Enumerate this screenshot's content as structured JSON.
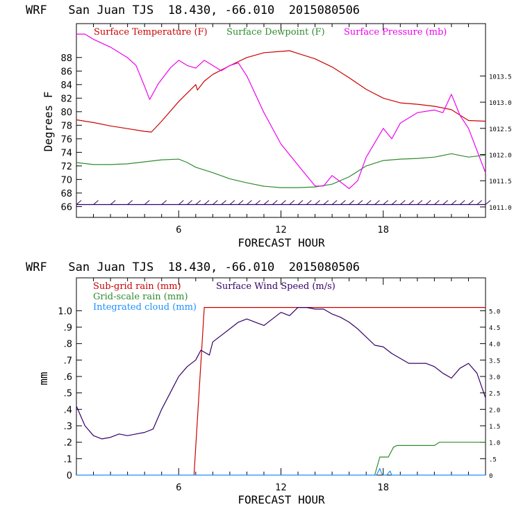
{
  "chart_data": [
    {
      "type": "line",
      "title": "WRF   San Juan TJS  18.430, -66.010  2015080506",
      "xlabel": "FORECAST HOUR",
      "ylabel": "Degrees F",
      "xlim": [
        0,
        24
      ],
      "ylim": [
        64.4,
        93
      ],
      "y2lim": [
        1010.8,
        1014.5
      ],
      "xticks": [
        6,
        12,
        18
      ],
      "yticks": [
        66,
        68,
        70,
        72,
        74,
        76,
        78,
        80,
        82,
        84,
        86,
        88
      ],
      "y2ticks": [
        1011.0,
        1011.5,
        1012.0,
        1012.5,
        1013.0,
        1013.5
      ],
      "y2ticklabels": [
        "1011.0",
        "1011.5",
        "1012.0",
        "1012.5",
        "1013.0",
        "1013.5"
      ],
      "series": [
        {
          "name": "Surface Temperature (F)",
          "color": "#cc0000",
          "axis": "left",
          "x": [
            0,
            1,
            2,
            3,
            4,
            4.4,
            5,
            6,
            7,
            7.1,
            7.5,
            8,
            9,
            10,
            11,
            12,
            12.5,
            13,
            14,
            15,
            16,
            17,
            18,
            19,
            20,
            21,
            22,
            23,
            24
          ],
          "y": [
            78.8,
            78.4,
            77.9,
            77.5,
            77.1,
            77.0,
            78.6,
            81.5,
            84.0,
            83.2,
            84.5,
            85.5,
            86.8,
            88.0,
            88.7,
            88.9,
            89.0,
            88.6,
            87.8,
            86.6,
            85.0,
            83.3,
            82.0,
            81.3,
            81.1,
            80.8,
            80.3,
            78.7,
            78.6
          ]
        },
        {
          "name": "Surface Dewpoint (F)",
          "color": "#2e8b2e",
          "axis": "left",
          "x": [
            0,
            1,
            2,
            3,
            4,
            5,
            6,
            6.5,
            7,
            8,
            9,
            10,
            11,
            12,
            13,
            14,
            15,
            16,
            17,
            18,
            19,
            20,
            21,
            22,
            23,
            24
          ],
          "y": [
            72.5,
            72.2,
            72.2,
            72.3,
            72.6,
            72.9,
            73.0,
            72.5,
            71.8,
            71.0,
            70.1,
            69.5,
            69.0,
            68.8,
            68.8,
            68.9,
            69.3,
            70.4,
            72.0,
            72.8,
            73.0,
            73.1,
            73.3,
            73.8,
            73.3,
            73.6
          ]
        },
        {
          "name": "Surface Pressure (mb)",
          "color": "#ee00ee",
          "axis": "right",
          "x": [
            0,
            0.5,
            1,
            2,
            3,
            3.5,
            4,
            4.3,
            4.8,
            5.5,
            6,
            6.5,
            7,
            7.5,
            8,
            8.5,
            9,
            9.5,
            10,
            11,
            12,
            13,
            14,
            14.5,
            15,
            16,
            16.5,
            17,
            18,
            18.5,
            19,
            20,
            21,
            21.5,
            22,
            22.5,
            23,
            24
          ],
          "y": [
            1014.3,
            1014.3,
            1014.2,
            1014.05,
            1013.85,
            1013.7,
            1013.3,
            1013.05,
            1013.35,
            1013.65,
            1013.8,
            1013.7,
            1013.65,
            1013.8,
            1013.7,
            1013.6,
            1013.7,
            1013.75,
            1013.5,
            1012.8,
            1012.2,
            1011.8,
            1011.4,
            1011.4,
            1011.6,
            1011.35,
            1011.5,
            1011.95,
            1012.5,
            1012.3,
            1012.6,
            1012.8,
            1012.85,
            1012.8,
            1013.15,
            1012.75,
            1012.5,
            1011.65
          ]
        }
      ],
      "wind_barbs": {
        "color": "#330066",
        "axis": "left",
        "baseline": 66.3,
        "x": [
          0,
          1,
          2,
          3,
          4,
          5,
          6,
          6.5,
          7,
          7.5,
          8,
          8.5,
          9,
          9.5,
          10,
          10.5,
          11,
          11.5,
          12,
          12.5,
          13,
          13.5,
          14,
          14.5,
          15,
          15.5,
          16,
          16.5,
          17,
          17.5,
          18,
          18.5,
          19,
          19.5,
          20,
          20.5,
          21,
          21.5,
          22,
          22.5,
          23,
          23.5,
          24
        ]
      }
    },
    {
      "type": "line",
      "title": "WRF   San Juan TJS  18.430, -66.010  2015080506",
      "xlabel": "FORECAST HOUR",
      "ylabel": "mm",
      "xlim": [
        0,
        24
      ],
      "ylim": [
        0,
        1.2
      ],
      "y2lim": [
        0,
        6
      ],
      "xticks": [
        6,
        12,
        18
      ],
      "yticks": [
        0,
        0.1,
        0.2,
        0.3,
        0.4,
        0.5,
        0.6,
        0.7,
        0.8,
        0.9,
        1.0
      ],
      "yticklabels": [
        "0",
        ".1",
        ".2",
        ".3",
        ".4",
        ".5",
        ".6",
        ".7",
        ".8",
        ".9",
        "1.0"
      ],
      "y2ticks": [
        0,
        0.5,
        1.0,
        1.5,
        2.0,
        2.5,
        3.0,
        3.5,
        4.0,
        4.5,
        5.0
      ],
      "y2ticklabels": [
        "0",
        ".5",
        "1.0",
        "1.5",
        "2.0",
        "2.5",
        "3.0",
        "3.5",
        "4.0",
        "4.5",
        "5.0"
      ],
      "series": [
        {
          "name": "Sub-grid rain (mm)",
          "color": "#cc0000",
          "axis": "left",
          "x": [
            6.9,
            7.5,
            24
          ],
          "y": [
            0,
            1.02,
            1.02
          ]
        },
        {
          "name": "Grid-scale rain (mm)",
          "color": "#2e8b2e",
          "axis": "left",
          "x": [
            17.5,
            17.8,
            18.3,
            18.6,
            18.8,
            19.2,
            21,
            21.3,
            24
          ],
          "y": [
            0,
            0.11,
            0.11,
            0.17,
            0.18,
            0.18,
            0.18,
            0.2,
            0.2
          ]
        },
        {
          "name": "Integrated cloud (mm)",
          "color": "#1e90ff",
          "axis": "left",
          "x": [
            0,
            17.6,
            17.7,
            17.8,
            17.9,
            18.0,
            18.2,
            18.4,
            18.5,
            18.6,
            24
          ],
          "y": [
            0,
            0,
            0.02,
            0.04,
            0.01,
            0,
            0,
            0.025,
            0,
            0,
            0
          ]
        },
        {
          "name": "Surface Wind Speed (m/s)",
          "color": "#330066",
          "axis": "right",
          "x": [
            0,
            0.5,
            1,
            1.5,
            2,
            2.5,
            3,
            3.5,
            4,
            4.5,
            5,
            5.5,
            6,
            6.5,
            7,
            7.3,
            7.8,
            8,
            8.5,
            9,
            9.5,
            10,
            10.5,
            11,
            11.5,
            12,
            12.5,
            13,
            13.5,
            14,
            14.5,
            15,
            15.5,
            16,
            16.5,
            17,
            17.5,
            18,
            18.5,
            19,
            19.5,
            20,
            20.5,
            21,
            21.5,
            22,
            22.5,
            23,
            23.5,
            24
          ],
          "y": [
            2.1,
            1.5,
            1.2,
            1.1,
            1.15,
            1.25,
            1.2,
            1.25,
            1.3,
            1.4,
            2.0,
            2.5,
            3.0,
            3.3,
            3.5,
            3.8,
            3.65,
            4.05,
            4.25,
            4.45,
            4.65,
            4.75,
            4.65,
            4.55,
            4.75,
            4.95,
            4.85,
            5.1,
            5.1,
            5.05,
            5.05,
            4.9,
            4.8,
            4.65,
            4.45,
            4.2,
            3.95,
            3.9,
            3.7,
            3.55,
            3.4,
            3.4,
            3.4,
            3.3,
            3.1,
            2.95,
            3.25,
            3.4,
            3.1,
            2.35
          ]
        }
      ]
    }
  ]
}
